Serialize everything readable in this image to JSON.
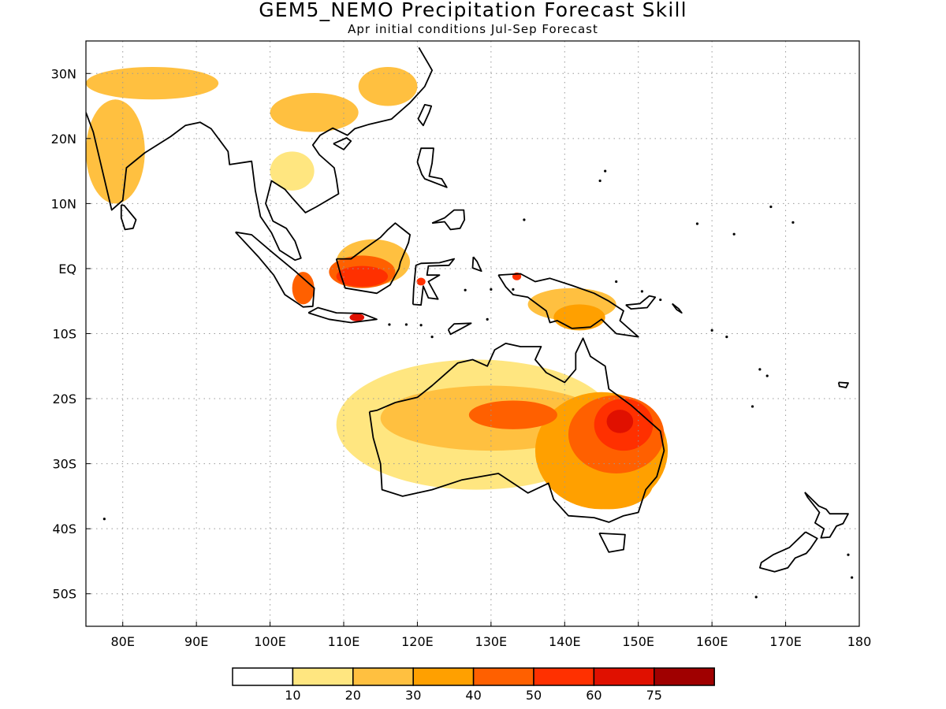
{
  "title": "GEM5_NEMO Precipitation Forecast Skill",
  "subtitle": "Apr initial conditions  Jul-Sep Forecast",
  "map": {
    "lon_range": [
      75,
      180
    ],
    "lat_range": [
      -55,
      35
    ],
    "lon_ticks": [
      {
        "value": 80,
        "label": "80E"
      },
      {
        "value": 90,
        "label": "90E"
      },
      {
        "value": 100,
        "label": "100E"
      },
      {
        "value": 110,
        "label": "110E"
      },
      {
        "value": 120,
        "label": "120E"
      },
      {
        "value": 130,
        "label": "130E"
      },
      {
        "value": 140,
        "label": "140E"
      },
      {
        "value": 150,
        "label": "150E"
      },
      {
        "value": 160,
        "label": "160E"
      },
      {
        "value": 170,
        "label": "170E"
      },
      {
        "value": 180,
        "label": "180"
      }
    ],
    "lat_ticks": [
      {
        "value": 30,
        "label": "30N"
      },
      {
        "value": 20,
        "label": "20N"
      },
      {
        "value": 10,
        "label": "10N"
      },
      {
        "value": 0,
        "label": "EQ"
      },
      {
        "value": -10,
        "label": "10S"
      },
      {
        "value": -20,
        "label": "20S"
      },
      {
        "value": -30,
        "label": "30S"
      },
      {
        "value": -40,
        "label": "40S"
      },
      {
        "value": -50,
        "label": "50S"
      }
    ],
    "grid": "dotted"
  },
  "colorbar": {
    "colors": [
      "#ffffff",
      "#ffe680",
      "#ffc040",
      "#ffa000",
      "#ff6000",
      "#ff3000",
      "#e01000",
      "#a00000"
    ],
    "labels": [
      "10",
      "20",
      "30",
      "40",
      "50",
      "60",
      "75"
    ]
  },
  "skill_regions": [
    {
      "name": "northeast-australia-core",
      "lon": 147.5,
      "lat": -23.5,
      "rx": 1.8,
      "ry": 1.8,
      "level": 6
    },
    {
      "name": "queensland-high",
      "lon": 148,
      "lat": -24,
      "rx": 4,
      "ry": 4,
      "level": 5
    },
    {
      "name": "queensland-moderate",
      "lon": 147,
      "lat": -25.5,
      "rx": 6.5,
      "ry": 6,
      "level": 4
    },
    {
      "name": "eastern-australia-broad",
      "lon": 145,
      "lat": -28,
      "rx": 9,
      "ry": 9,
      "level": 3
    },
    {
      "name": "central-australia-band",
      "lon": 133,
      "lat": -22.5,
      "rx": 6,
      "ry": 2.2,
      "level": 4
    },
    {
      "name": "southeast-australia",
      "lon": 146,
      "lat": -33,
      "rx": 6,
      "ry": 4,
      "level": 3
    },
    {
      "name": "interior-australia",
      "lon": 130,
      "lat": -23,
      "rx": 15,
      "ry": 5,
      "level": 2
    },
    {
      "name": "australia-light",
      "lon": 128,
      "lat": -24,
      "rx": 19,
      "ry": 10,
      "level": 1
    },
    {
      "name": "borneo-core",
      "lon": 112.5,
      "lat": -1.2,
      "rx": 3.5,
      "ry": 1.6,
      "level": 5
    },
    {
      "name": "borneo-moderate",
      "lon": 112.5,
      "lat": -0.5,
      "rx": 4.5,
      "ry": 2.5,
      "level": 4
    },
    {
      "name": "borneo-light",
      "lon": 114,
      "lat": 1,
      "rx": 5,
      "ry": 3.5,
      "level": 2
    },
    {
      "name": "java-east",
      "lon": 111.8,
      "lat": -7.5,
      "rx": 1,
      "ry": 0.6,
      "level": 6
    },
    {
      "name": "sumatra-south",
      "lon": 104.5,
      "lat": -3,
      "rx": 1.5,
      "ry": 2.5,
      "level": 4
    },
    {
      "name": "sulawesi-spot",
      "lon": 120.5,
      "lat": -2,
      "rx": 0.6,
      "ry": 0.6,
      "level": 5
    },
    {
      "name": "new-guinea-south",
      "lon": 142,
      "lat": -7.5,
      "rx": 3.5,
      "ry": 2,
      "level": 3
    },
    {
      "name": "new-guinea-light",
      "lon": 141,
      "lat": -5.5,
      "rx": 6,
      "ry": 2.5,
      "level": 2
    },
    {
      "name": "new-guinea-spot",
      "lon": 133.5,
      "lat": -1.2,
      "rx": 0.6,
      "ry": 0.6,
      "level": 5
    },
    {
      "name": "india-west",
      "lon": 79,
      "lat": 18,
      "rx": 4,
      "ry": 8,
      "level": 2
    },
    {
      "name": "himalaya-band",
      "lon": 84,
      "lat": 28.5,
      "rx": 9,
      "ry": 2.5,
      "level": 2
    },
    {
      "name": "china-south",
      "lon": 106,
      "lat": 24,
      "rx": 6,
      "ry": 3,
      "level": 2
    },
    {
      "name": "china-east",
      "lon": 116,
      "lat": 28,
      "rx": 4,
      "ry": 3,
      "level": 2
    },
    {
      "name": "indochina",
      "lon": 103,
      "lat": 15,
      "rx": 3,
      "ry": 3,
      "level": 1
    }
  ]
}
